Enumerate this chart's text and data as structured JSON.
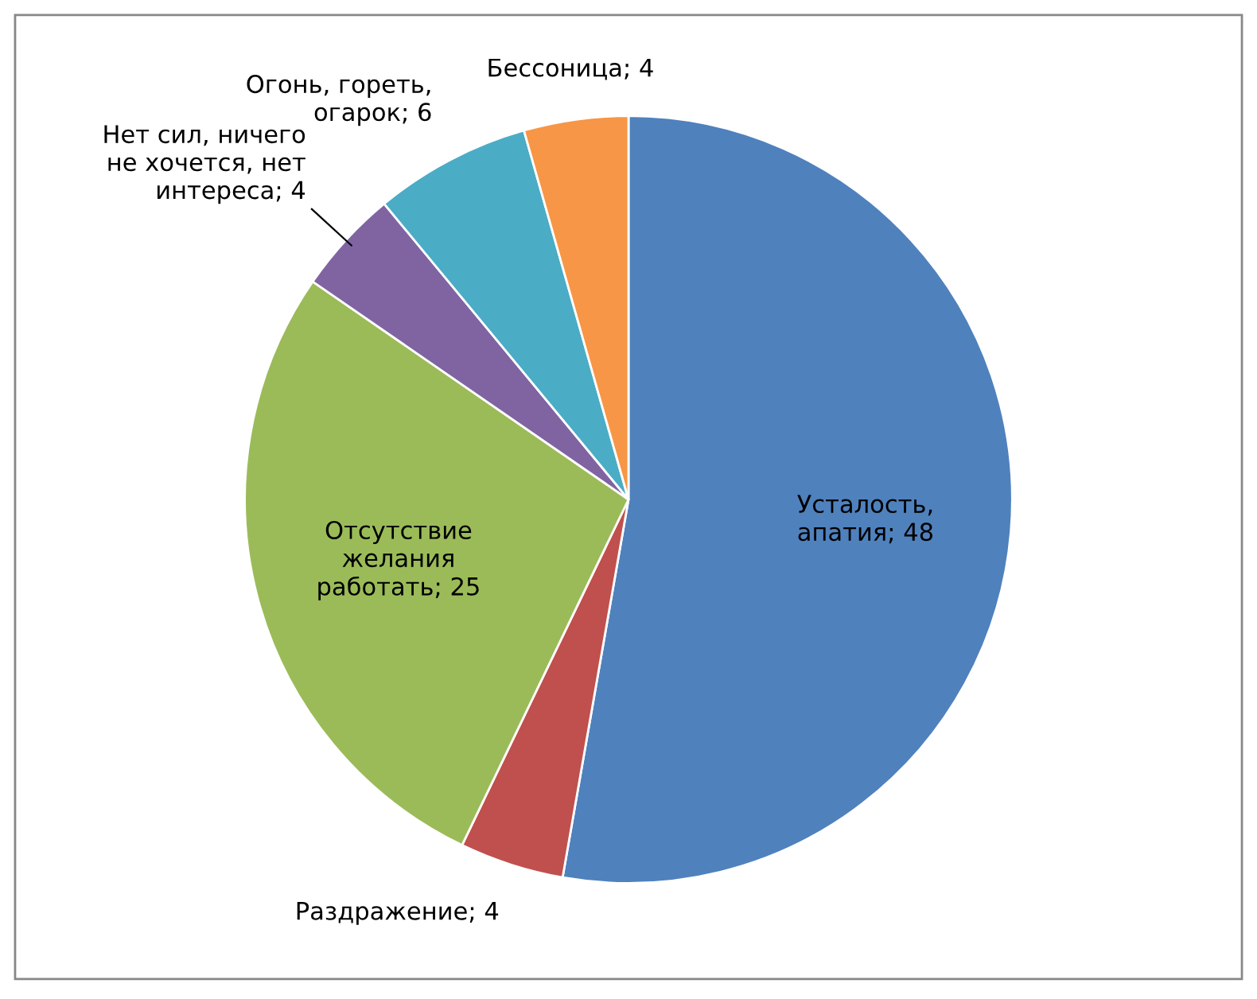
{
  "chart_data": {
    "type": "pie",
    "categories": [
      "Усталость,\nапатия",
      "Раздражение",
      "Отсутствие\nжелания\nработать",
      "Нет сил, ничего\nне хочется, нет\nинтереса",
      "Огонь, гореть,\nогарок",
      "Бессоница"
    ],
    "values": [
      48,
      4,
      25,
      4,
      6,
      4
    ],
    "colors": [
      "#4f81bd",
      "#c0504d",
      "#9bbb59",
      "#8064a2",
      "#4bacc6",
      "#f79646"
    ],
    "value_labels": [
      "; 48",
      "; 4",
      "; 25",
      "; 4",
      "; 6",
      "; 4"
    ],
    "legend": false
  }
}
